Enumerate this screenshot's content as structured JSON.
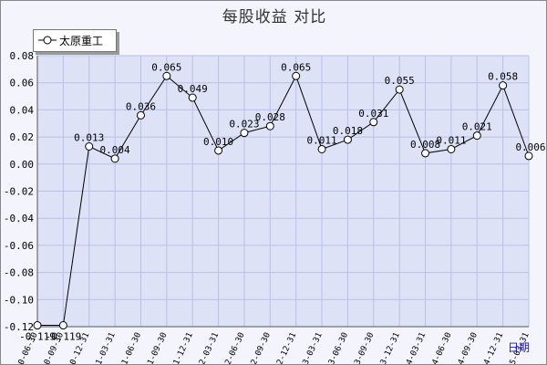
{
  "chart_data": {
    "type": "line",
    "title": "每股收益  对比",
    "series": [
      {
        "name": "太原重工",
        "values": [
          -0.119,
          -0.119,
          0.013,
          0.004,
          0.036,
          0.065,
          0.049,
          0.01,
          0.023,
          0.028,
          0.065,
          0.011,
          0.018,
          0.031,
          0.055,
          0.008,
          0.011,
          0.021,
          0.058,
          0.006
        ],
        "labels": [
          "-0.119",
          "-0.119",
          "0.013",
          "0.004",
          "0.036",
          "0.065",
          "0.049",
          "0.010",
          "0.023",
          "0.028",
          "0.065",
          "0.011",
          "0.018",
          "0.031",
          "0.055",
          "0.008",
          "0.011",
          "0.021",
          "0.058",
          "0.006"
        ]
      }
    ],
    "categories": [
      "2020-06-30",
      "2020-09-30",
      "2020-12-31",
      "2021-03-31",
      "2021-06-30",
      "2021-09-30",
      "2021-12-31",
      "2022-03-31",
      "2022-06-30",
      "2022-09-30",
      "2022-12-31",
      "2023-03-31",
      "2023-06-30",
      "2023-09-30",
      "2023-12-31",
      "2024-03-31",
      "2024-06-30",
      "2024-09-30",
      "2024-12-31",
      "2025-03-31"
    ],
    "y_ticks": [
      "0.08",
      "0.06",
      "0.04",
      "0.02",
      "0.00",
      "-0.02",
      "-0.04",
      "-0.06",
      "-0.08",
      "-0.10",
      "-0.12"
    ],
    "ylim": [
      -0.12,
      0.08
    ],
    "xlabel": "日期",
    "ylabel": "",
    "grid": true,
    "legend_position": "top-left"
  },
  "colors": {
    "plot_background": "#dde2f7",
    "grid": "#b8c0e8",
    "line": "#000000",
    "x_unit": "#1a1aa8"
  }
}
